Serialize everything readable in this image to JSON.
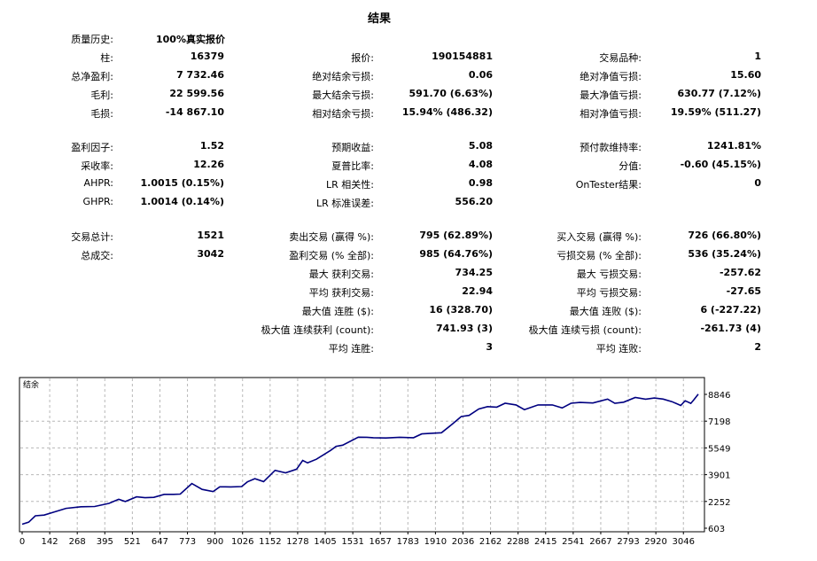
{
  "title": "结果",
  "history": {
    "label": "质量历史:",
    "value": "100%真实报价"
  },
  "rows": [
    {
      "top": 57,
      "cells": [
        {
          "label": "柱:",
          "value": "16379"
        },
        {
          "label": "报价:",
          "value": "190154881"
        },
        {
          "label": "交易品种:",
          "value": "1"
        }
      ]
    },
    {
      "top": 78,
      "cells": [
        {
          "label": "总净盈利:",
          "value": "7 732.46"
        },
        {
          "label": "绝对结余亏损:",
          "value": "0.06"
        },
        {
          "label": "绝对净值亏损:",
          "value": "15.60"
        }
      ]
    },
    {
      "top": 99,
      "cells": [
        {
          "label": "毛利:",
          "value": "22 599.56"
        },
        {
          "label": "最大结余亏损:",
          "value": "591.70 (6.63%)"
        },
        {
          "label": "最大净值亏损:",
          "value": "630.77 (7.12%)"
        }
      ]
    },
    {
      "top": 120,
      "cells": [
        {
          "label": "毛损:",
          "value": "-14 867.10"
        },
        {
          "label": "相对结余亏损:",
          "value": "15.94% (486.32)"
        },
        {
          "label": "相对净值亏损:",
          "value": "19.59% (511.27)"
        }
      ]
    },
    {
      "top": 158,
      "cells": [
        {
          "label": "盈利因子:",
          "value": "1.52"
        },
        {
          "label": "预期收益:",
          "value": "5.08"
        },
        {
          "label": "预付款维持率:",
          "value": "1241.81%"
        }
      ]
    },
    {
      "top": 179,
      "cells": [
        {
          "label": "采收率:",
          "value": "12.26"
        },
        {
          "label": "夏普比率:",
          "value": "4.08"
        },
        {
          "label": "分值:",
          "value": "-0.60 (45.15%)"
        }
      ]
    },
    {
      "top": 200,
      "cells": [
        {
          "label": "AHPR:",
          "value": "1.0015 (0.15%)"
        },
        {
          "label": "LR 相关性:",
          "value": "0.98"
        },
        {
          "label": "OnTester结果:",
          "value": "0"
        }
      ]
    },
    {
      "top": 221,
      "cells": [
        {
          "label": "GHPR:",
          "value": "1.0014 (0.14%)"
        },
        {
          "label": "LR 标准误差:",
          "value": "556.20"
        },
        null
      ]
    },
    {
      "top": 259,
      "cells": [
        {
          "label": "交易总计:",
          "value": "1521"
        },
        {
          "label": "卖出交易 (赢得 %):",
          "value": "795 (62.89%)"
        },
        {
          "label": "买入交易 (赢得 %):",
          "value": "726 (66.80%)"
        }
      ]
    },
    {
      "top": 280,
      "cells": [
        {
          "label": "总成交:",
          "value": "3042"
        },
        {
          "label": "盈利交易 (% 全部):",
          "value": "985 (64.76%)"
        },
        {
          "label": "亏损交易 (% 全部):",
          "value": "536 (35.24%)"
        }
      ]
    },
    {
      "top": 301,
      "cells": [
        null,
        {
          "label": "最大 获利交易:",
          "value": "734.25"
        },
        {
          "label": "最大 亏损交易:",
          "value": "-257.62"
        }
      ]
    },
    {
      "top": 322,
      "cells": [
        null,
        {
          "label": "平均 获利交易:",
          "value": "22.94"
        },
        {
          "label": "平均 亏损交易:",
          "value": "-27.65"
        }
      ]
    },
    {
      "top": 343,
      "cells": [
        null,
        {
          "label": "最大值 连胜 ($):",
          "value": "16 (328.70)"
        },
        {
          "label": "最大值 连败 ($):",
          "value": "6 (-227.22)"
        }
      ]
    },
    {
      "top": 364,
      "cells": [
        null,
        {
          "label": "极大值 连续获利 (count):",
          "value": "741.93 (3)"
        },
        {
          "label": "极大值 连续亏损 (count):",
          "value": "-261.73 (4)"
        }
      ]
    },
    {
      "top": 385,
      "cells": [
        null,
        {
          "label": "平均 连胜:",
          "value": "3"
        },
        {
          "label": "平均 连败:",
          "value": "2"
        }
      ]
    }
  ],
  "chart_data": {
    "type": "line",
    "title": "",
    "legend": "结余",
    "line_color": "#000080",
    "x_ticks": [
      "0",
      "142",
      "268",
      "395",
      "521",
      "647",
      "773",
      "900",
      "1026",
      "1152",
      "1278",
      "1405",
      "1531",
      "1657",
      "1783",
      "1910",
      "2036",
      "2162",
      "2288",
      "2415",
      "2541",
      "2667",
      "2793",
      "2920",
      "3046"
    ],
    "y_ticks": [
      "8846",
      "7198",
      "5549",
      "3901",
      "2252",
      "603"
    ],
    "xlim": [
      0,
      3100
    ],
    "ylim": [
      603,
      8846
    ],
    "grid": true,
    "series": [
      {
        "x": [
          0,
          30,
          60,
          100,
          142,
          200,
          268,
          330,
          395,
          440,
          470,
          521,
          560,
          600,
          647,
          690,
          720,
          773,
          820,
          870,
          900,
          950,
          1000,
          1026,
          1060,
          1100,
          1152,
          1200,
          1250,
          1278,
          1300,
          1340,
          1405,
          1430,
          1460,
          1531,
          1570,
          1600,
          1657,
          1720,
          1783,
          1820,
          1880,
          1910,
          1960,
          2000,
          2036,
          2080,
          2120,
          2162,
          2200,
          2250,
          2288,
          2350,
          2415,
          2460,
          2500,
          2541,
          2600,
          2667,
          2700,
          2740,
          2793,
          2840,
          2880,
          2920,
          2960,
          3000,
          3020,
          3046,
          3060,
          3080
        ],
        "y": [
          900,
          1100,
          1350,
          1450,
          1700,
          1800,
          1950,
          2050,
          2100,
          2400,
          2350,
          2500,
          2500,
          2600,
          2650,
          2700,
          2800,
          3300,
          3000,
          2950,
          3100,
          3150,
          3250,
          3400,
          3650,
          3550,
          4100,
          4000,
          4300,
          4700,
          4600,
          4900,
          5300,
          5600,
          5750,
          6100,
          6150,
          6200,
          6050,
          6150,
          6200,
          6300,
          6400,
          6500,
          6900,
          7400,
          7550,
          7800,
          8000,
          8050,
          8150,
          8100,
          7900,
          8050,
          8100,
          8000,
          8150,
          8250,
          8300,
          8400,
          8200,
          8350,
          8500,
          8450,
          8600,
          8400,
          8300,
          8150,
          8300,
          8200,
          8500,
          8700
        ]
      }
    ]
  }
}
